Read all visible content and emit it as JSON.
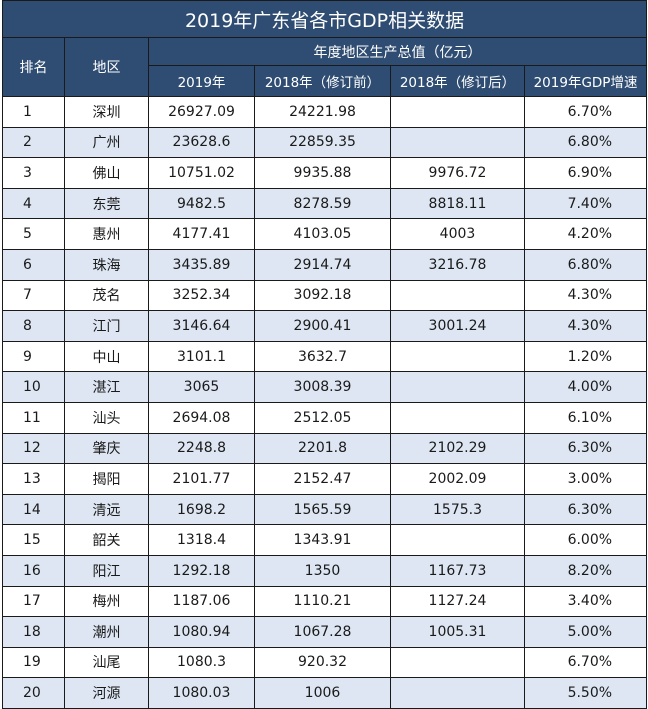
{
  "title": "2019年广东省各市GDP相关数据",
  "headers": {
    "rank": "排名",
    "region": "地区",
    "group": "年度地区生产总值（亿元）",
    "gdp_2019": "2019年",
    "gdp_2018_before": "2018年（修订前）",
    "gdp_2018_after": "2018年（修订后）",
    "growth_2019": "2019年GDP增速"
  },
  "rows": [
    {
      "rank": "1",
      "city": "深圳",
      "gdp_2019": "26927.09",
      "gdp_2018_before": "24221.98",
      "gdp_2018_after": "",
      "growth": "6.70%"
    },
    {
      "rank": "2",
      "city": "广州",
      "gdp_2019": "23628.6",
      "gdp_2018_before": "22859.35",
      "gdp_2018_after": "",
      "growth": "6.80%"
    },
    {
      "rank": "3",
      "city": "佛山",
      "gdp_2019": "10751.02",
      "gdp_2018_before": "9935.88",
      "gdp_2018_after": "9976.72",
      "growth": "6.90%"
    },
    {
      "rank": "4",
      "city": "东莞",
      "gdp_2019": "9482.5",
      "gdp_2018_before": "8278.59",
      "gdp_2018_after": "8818.11",
      "growth": "7.40%"
    },
    {
      "rank": "5",
      "city": "惠州",
      "gdp_2019": "4177.41",
      "gdp_2018_before": "4103.05",
      "gdp_2018_after": "4003",
      "growth": "4.20%"
    },
    {
      "rank": "6",
      "city": "珠海",
      "gdp_2019": "3435.89",
      "gdp_2018_before": "2914.74",
      "gdp_2018_after": "3216.78",
      "growth": "6.80%"
    },
    {
      "rank": "7",
      "city": "茂名",
      "gdp_2019": "3252.34",
      "gdp_2018_before": "3092.18",
      "gdp_2018_after": "",
      "growth": "4.30%"
    },
    {
      "rank": "8",
      "city": "江门",
      "gdp_2019": "3146.64",
      "gdp_2018_before": "2900.41",
      "gdp_2018_after": "3001.24",
      "growth": "4.30%"
    },
    {
      "rank": "9",
      "city": "中山",
      "gdp_2019": "3101.1",
      "gdp_2018_before": "3632.7",
      "gdp_2018_after": "",
      "growth": "1.20%"
    },
    {
      "rank": "10",
      "city": "湛江",
      "gdp_2019": "3065",
      "gdp_2018_before": "3008.39",
      "gdp_2018_after": "",
      "growth": "4.00%"
    },
    {
      "rank": "11",
      "city": "汕头",
      "gdp_2019": "2694.08",
      "gdp_2018_before": "2512.05",
      "gdp_2018_after": "",
      "growth": "6.10%"
    },
    {
      "rank": "12",
      "city": "肇庆",
      "gdp_2019": "2248.8",
      "gdp_2018_before": "2201.8",
      "gdp_2018_after": "2102.29",
      "growth": "6.30%"
    },
    {
      "rank": "13",
      "city": "揭阳",
      "gdp_2019": "2101.77",
      "gdp_2018_before": "2152.47",
      "gdp_2018_after": "2002.09",
      "growth": "3.00%"
    },
    {
      "rank": "14",
      "city": "清远",
      "gdp_2019": "1698.2",
      "gdp_2018_before": "1565.59",
      "gdp_2018_after": "1575.3",
      "growth": "6.30%"
    },
    {
      "rank": "15",
      "city": "韶关",
      "gdp_2019": "1318.4",
      "gdp_2018_before": "1343.91",
      "gdp_2018_after": "",
      "growth": "6.00%"
    },
    {
      "rank": "16",
      "city": "阳江",
      "gdp_2019": "1292.18",
      "gdp_2018_before": "1350",
      "gdp_2018_after": "1167.73",
      "growth": "8.20%"
    },
    {
      "rank": "17",
      "city": "梅州",
      "gdp_2019": "1187.06",
      "gdp_2018_before": "1110.21",
      "gdp_2018_after": "1127.24",
      "growth": "3.40%"
    },
    {
      "rank": "18",
      "city": "潮州",
      "gdp_2019": "1080.94",
      "gdp_2018_before": "1067.28",
      "gdp_2018_after": "1005.31",
      "growth": "5.00%"
    },
    {
      "rank": "19",
      "city": "汕尾",
      "gdp_2019": "1080.3",
      "gdp_2018_before": "920.32",
      "gdp_2018_after": "",
      "growth": "6.70%"
    },
    {
      "rank": "20",
      "city": "河源",
      "gdp_2019": "1080.03",
      "gdp_2018_before": "1006",
      "gdp_2018_after": "",
      "growth": "5.50%"
    }
  ]
}
